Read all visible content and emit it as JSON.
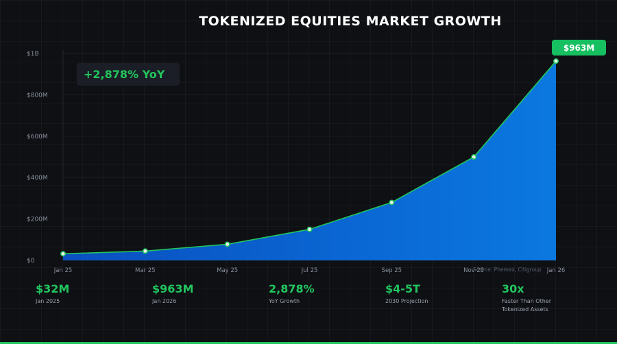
{
  "chart_data": {
    "type": "area",
    "title": "TOKENIZED EQUITIES MARKET GROWTH",
    "x": [
      "Jan 25",
      "Mar 25",
      "May 25",
      "Jul 25",
      "Sep 25",
      "Nov 25",
      "Jan 26"
    ],
    "values": [
      32,
      45,
      78,
      150,
      280,
      500,
      963
    ],
    "y_unit": "millions USD",
    "ylim": [
      0,
      1000
    ],
    "y_ticks": [
      {
        "value": 0,
        "label": "$0"
      },
      {
        "value": 200,
        "label": "$200M"
      },
      {
        "value": 400,
        "label": "$400M"
      },
      {
        "value": 600,
        "label": "$600M"
      },
      {
        "value": 800,
        "label": "$800M"
      },
      {
        "value": 1000,
        "label": "$1B"
      }
    ],
    "grid": true,
    "colors": {
      "line": "#22c55e",
      "fill_start": "#0a4fc0",
      "fill_end": "#0b78e0",
      "marker_fill": "#f0f0f0"
    },
    "annotations": {
      "growth_box": "+2,878% YoY",
      "end_value_badge": "$963M",
      "source": "Source: Phemex, Citigroup"
    }
  },
  "stats": [
    {
      "value": "$32M",
      "label": "Jan 2025"
    },
    {
      "value": "$963M",
      "label": "Jan 2026"
    },
    {
      "value": "2,878%",
      "label": "YoY Growth"
    },
    {
      "value": "$4-5T",
      "label": "2030 Projection"
    },
    {
      "value": "30x",
      "label": "Faster Than Other Tokenized Assets"
    }
  ],
  "colors": {
    "background": "#0e1014",
    "accent": "#22c55e"
  }
}
